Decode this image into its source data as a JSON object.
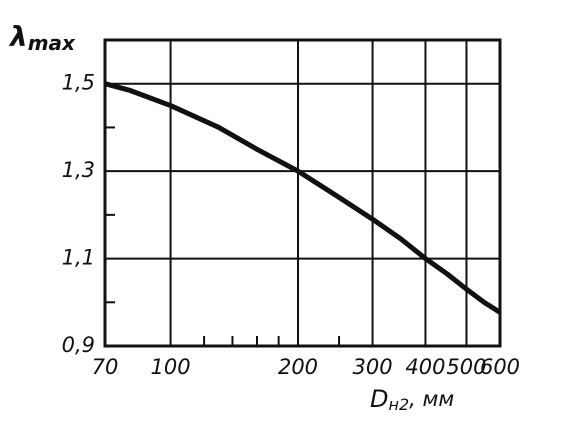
{
  "chart_data": {
    "type": "line",
    "ylabel_symbol": "λ",
    "ylabel_sub": "max",
    "xlabel_symbol": "D",
    "xlabel_sub": "н2",
    "xlabel_unit": ", мм",
    "xscale": "log",
    "grid": true,
    "color": "#111111",
    "xlim": [
      70,
      600
    ],
    "xticks": [
      70,
      100,
      200,
      300,
      400,
      500,
      600
    ],
    "xminor": [
      120,
      140,
      160,
      180,
      250
    ],
    "ylim": [
      0.9,
      1.6
    ],
    "yticks": [
      {
        "value": 0.9,
        "label": "0,9"
      },
      {
        "value": 1.1,
        "label": "1,1"
      },
      {
        "value": 1.3,
        "label": "1,3"
      },
      {
        "value": 1.5,
        "label": "1,5"
      }
    ],
    "yminor": [
      1.0,
      1.2,
      1.4
    ],
    "x": [
      70,
      80,
      100,
      130,
      160,
      200,
      250,
      300,
      350,
      400,
      450,
      500,
      550,
      600
    ],
    "values": [
      1.5,
      1.485,
      1.45,
      1.4,
      1.35,
      1.3,
      1.24,
      1.19,
      1.145,
      1.1,
      1.065,
      1.03,
      1.0,
      0.977
    ]
  }
}
